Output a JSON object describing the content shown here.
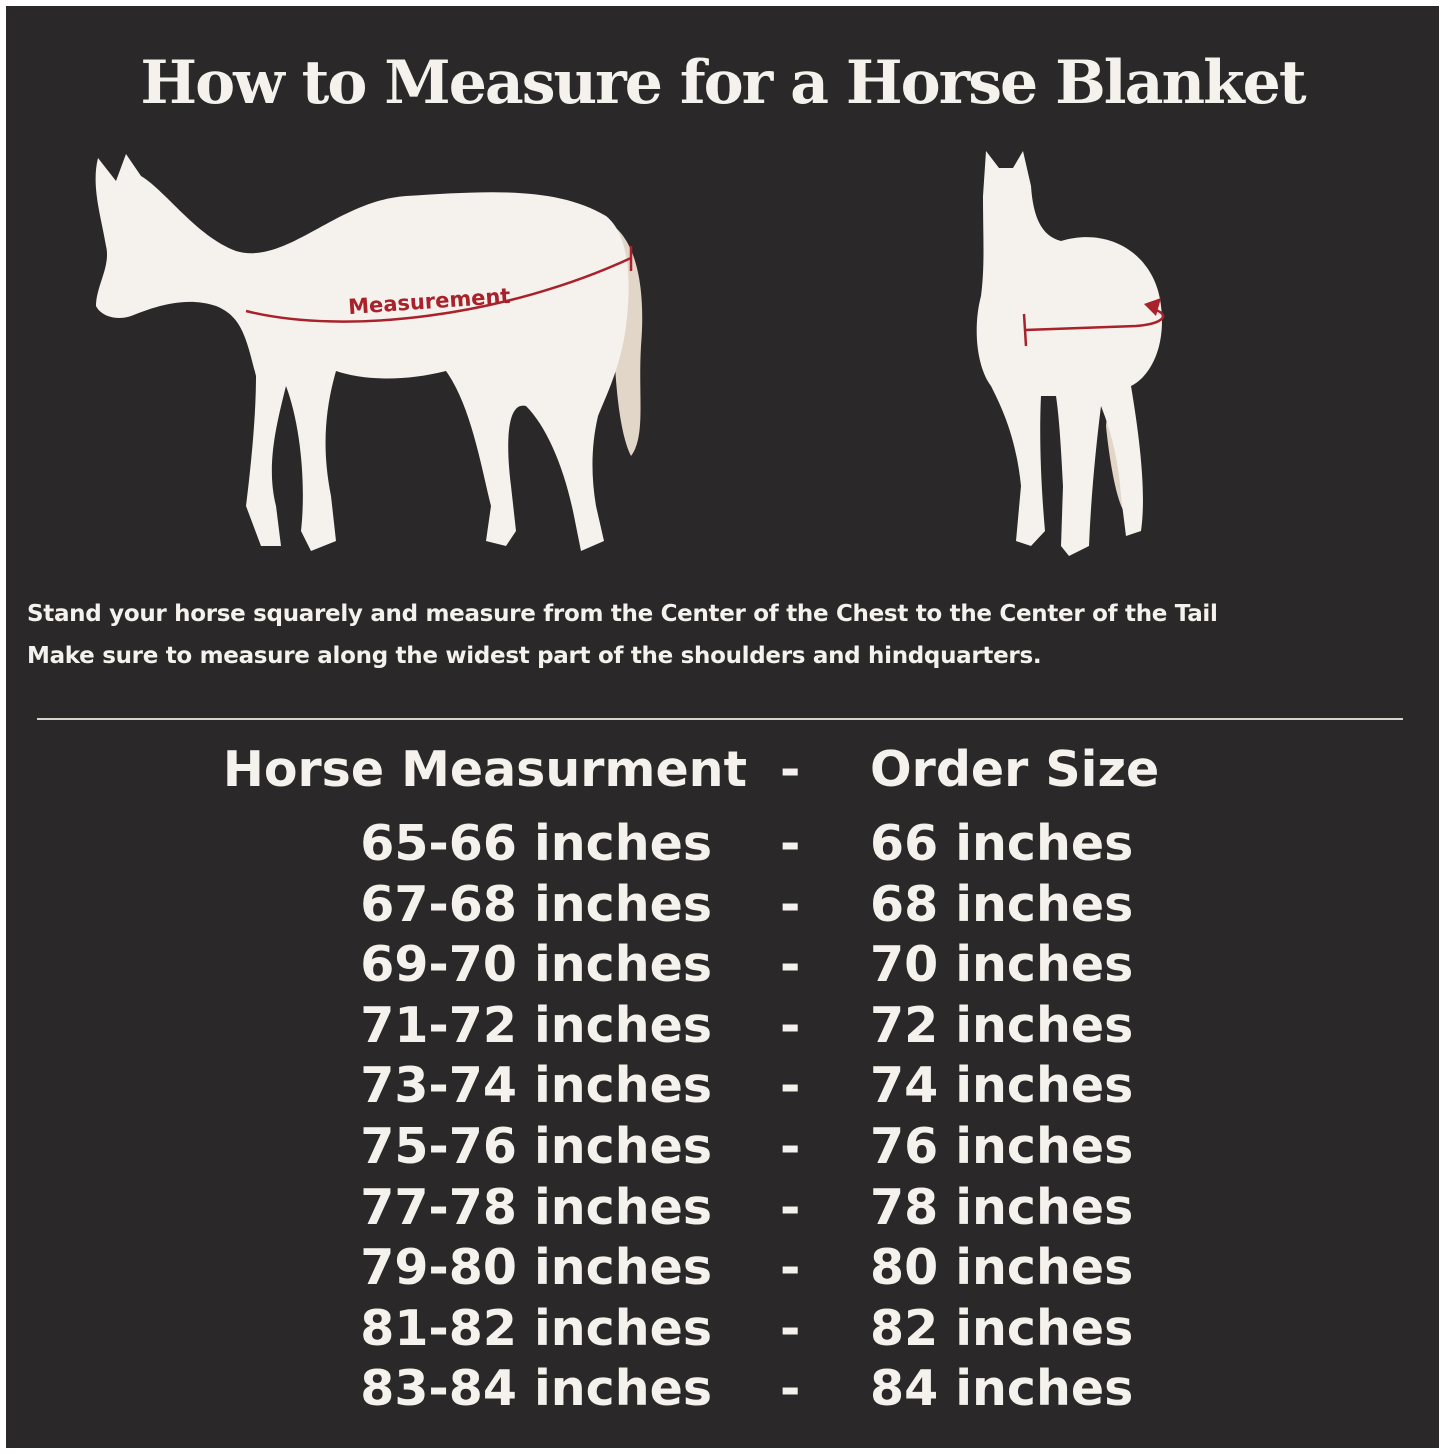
{
  "title": "How to Measure for a Horse Blanket",
  "diagram": {
    "side_label": "Measurement",
    "accent_color": "#a8212b",
    "horse_color": "#f5f1ec",
    "background_color": "#2a2829"
  },
  "instructions": [
    "Stand your horse squarely and measure from the Center of the Chest to the Center of the Tail",
    "Make sure to measure along the widest part of the shoulders and hindquarters."
  ],
  "table": {
    "header": {
      "measurement": "Horse Measurment",
      "separator": "-",
      "size": "Order Size"
    },
    "rows": [
      {
        "measurement": "65-66 inches",
        "separator": "-",
        "size": "66 inches"
      },
      {
        "measurement": "67-68 inches",
        "separator": "-",
        "size": "68 inches"
      },
      {
        "measurement": "69-70 inches",
        "separator": "-",
        "size": "70 inches"
      },
      {
        "measurement": "71-72 inches",
        "separator": "-",
        "size": "72 inches"
      },
      {
        "measurement": "73-74 inches",
        "separator": "-",
        "size": "74 inches"
      },
      {
        "measurement": "75-76 inches",
        "separator": "-",
        "size": "76 inches"
      },
      {
        "measurement": "77-78 inches",
        "separator": "-",
        "size": "78 inches"
      },
      {
        "measurement": "79-80 inches",
        "separator": "-",
        "size": "80 inches"
      },
      {
        "measurement": "81-82 inches",
        "separator": "-",
        "size": "82 inches"
      },
      {
        "measurement": "83-84 inches",
        "separator": "-",
        "size": "84 inches"
      }
    ]
  }
}
